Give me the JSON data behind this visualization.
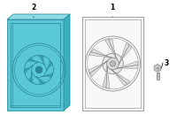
{
  "bg_color": "#ffffff",
  "hl_fill": "#5bc8d8",
  "hl_top": "#8ddce8",
  "hl_side": "#3aafbf",
  "hl_edge": "#2a8898",
  "part_fill": "#f8f8f8",
  "part_edge": "#888888",
  "bolt_fill": "#cccccc",
  "bolt_edge": "#888888",
  "label1": "1",
  "label2": "2",
  "label3": "3",
  "lfs": 5.5
}
